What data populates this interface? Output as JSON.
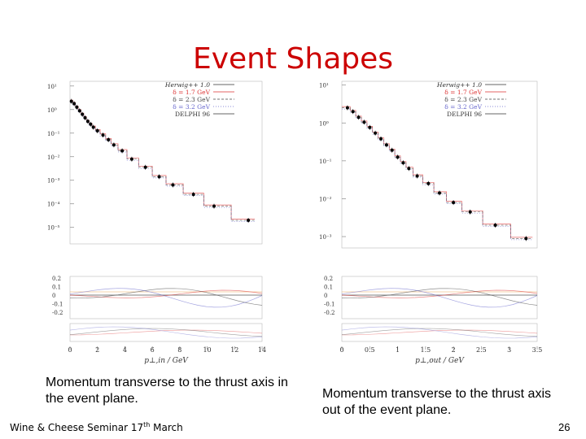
{
  "slide": {
    "title": "Event Shapes",
    "footer": {
      "text": "Wine & Cheese Seminar 17",
      "sup": "th",
      "month": "March"
    },
    "page_number": "26",
    "captions": [
      "Momentum transverse to the thrust axis in the event plane.",
      "Momentum transverse to the thrust axis out of the event plane."
    ]
  },
  "colors": {
    "title": "#cc0000",
    "red": "#d33",
    "green": "#444",
    "blue": "#66c",
    "orange": "#e8a04c",
    "data": "#000000"
  },
  "chart_data": [
    {
      "type": "line",
      "xlabel": "p⊥,in / GeV",
      "xlim": [
        0,
        14
      ],
      "ylim_log10": [
        -5.7,
        1.2
      ],
      "xticks": [
        0,
        2,
        4,
        6,
        8,
        10,
        12,
        14
      ],
      "yticks": [
        {
          "v": 1,
          "label": "10¹"
        },
        {
          "v": 0,
          "label": "10⁰"
        },
        {
          "v": -1,
          "label": "10⁻¹"
        },
        {
          "v": -2,
          "label": "10⁻²"
        },
        {
          "v": -3,
          "label": "10⁻³"
        },
        {
          "v": -4,
          "label": "10⁻⁴"
        },
        {
          "v": -5,
          "label": "10⁻⁵"
        }
      ],
      "ratio_ticks": [
        "0.2",
        "0.1",
        "0",
        "-0.1",
        "-0.2"
      ],
      "legend": [
        "Herwig++ 1.0",
        "δ = 1.7 GeV",
        "δ = 2.3 GeV",
        "δ = 3.2 GeV",
        "DELPHI 96"
      ],
      "x": [
        0.1,
        0.3,
        0.5,
        0.7,
        0.9,
        1.1,
        1.3,
        1.5,
        1.7,
        2.0,
        2.4,
        2.8,
        3.2,
        3.8,
        4.5,
        5.5,
        6.5,
        7.5,
        9,
        10.5,
        13
      ],
      "y_log10": [
        0.35,
        0.25,
        0.1,
        -0.05,
        -0.2,
        -0.35,
        -0.5,
        -0.62,
        -0.75,
        -0.9,
        -1.08,
        -1.28,
        -1.5,
        -1.75,
        -2.1,
        -2.45,
        -2.85,
        -3.2,
        -3.6,
        -4.1,
        -4.7
      ]
    },
    {
      "type": "line",
      "xlabel": "p⊥,out / GeV",
      "xlim": [
        0,
        3.5
      ],
      "ylim_log10": [
        -3.3,
        1.1
      ],
      "xticks": [
        0,
        0.5,
        1,
        1.5,
        2,
        2.5,
        3,
        3.5
      ],
      "yticks": [
        {
          "v": 1,
          "label": "10¹"
        },
        {
          "v": 0,
          "label": "10⁰"
        },
        {
          "v": -1,
          "label": "10⁻¹"
        },
        {
          "v": -2,
          "label": "10⁻²"
        },
        {
          "v": -3,
          "label": "10⁻³"
        }
      ],
      "ratio_ticks": [
        "0.2",
        "0.1",
        "0",
        "-0.1",
        "-0.2"
      ],
      "legend": [
        "Herwig++ 1.0",
        "δ = 1.7 GeV",
        "δ = 2.3 GeV",
        "δ = 3.2 GeV",
        "DELPHI 96"
      ],
      "x": [
        0.1,
        0.2,
        0.3,
        0.4,
        0.5,
        0.6,
        0.7,
        0.8,
        0.9,
        1.0,
        1.1,
        1.2,
        1.35,
        1.55,
        1.75,
        2.0,
        2.3,
        2.75,
        3.3
      ],
      "y_log10": [
        0.4,
        0.3,
        0.15,
        0.02,
        -0.12,
        -0.27,
        -0.42,
        -0.58,
        -0.72,
        -0.9,
        -1.05,
        -1.2,
        -1.4,
        -1.6,
        -1.85,
        -2.1,
        -2.35,
        -2.7,
        -3.05
      ]
    }
  ]
}
